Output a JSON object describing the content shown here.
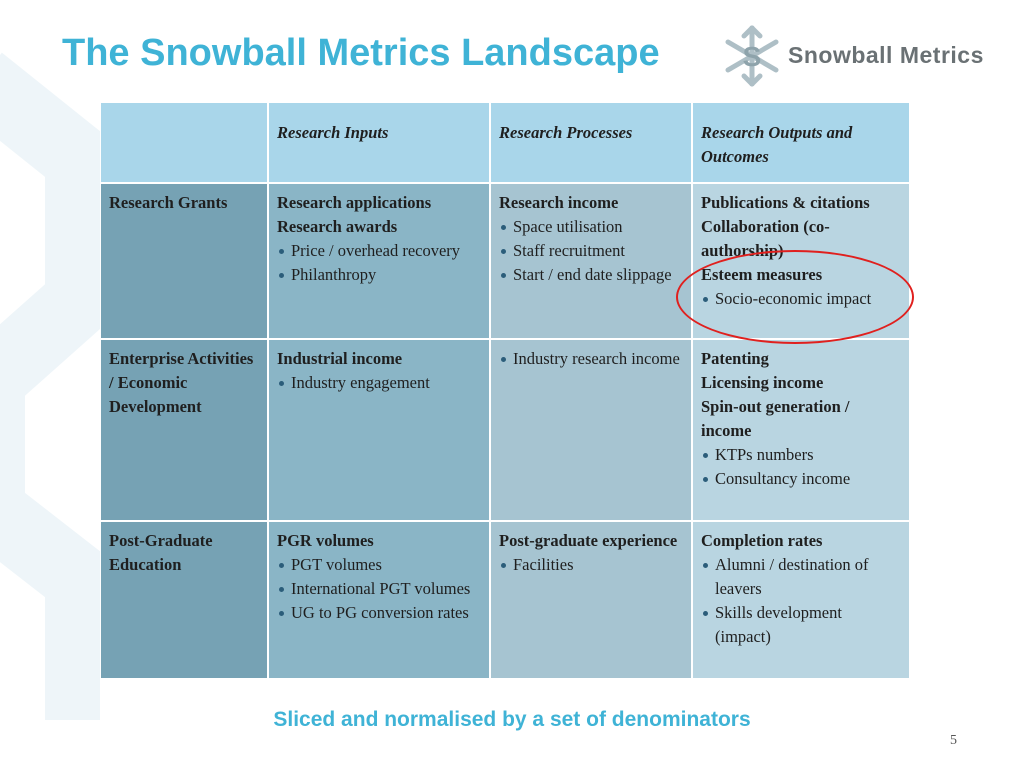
{
  "slide": {
    "title": "The Snowball Metrics Landscape",
    "footer": "Sliced and normalised by a set of denominators",
    "page_number": "5"
  },
  "logo": {
    "text": "Snowball Metrics",
    "icon": "snowflake-s-icon"
  },
  "colors": {
    "title": "#3fb3d6",
    "header_row": "#a9d6ea",
    "row_header": "#76a2b4",
    "highlight_circle": "#e0201e"
  },
  "table": {
    "columns": [
      "",
      "Research Inputs",
      "Research Processes",
      "Research Outputs and Outcomes"
    ],
    "rows": [
      {
        "header": "Research Grants",
        "inputs": {
          "bold": [
            "Research applications",
            "Research awards"
          ],
          "bullets": [
            "Price / overhead recovery",
            "Philanthropy"
          ]
        },
        "processes": {
          "bold": [
            "Research income"
          ],
          "bullets": [
            "Space utilisation",
            "Staff recruitment",
            "Start / end date slippage"
          ]
        },
        "outputs": {
          "bold": [
            "Publications & citations",
            "Collaboration (co-authorship)",
            "Esteem measures"
          ],
          "bullets": [
            "Socio-economic impact"
          ]
        }
      },
      {
        "header": "Enterprise Activities / Economic Development",
        "inputs": {
          "bold": [
            "Industrial income"
          ],
          "bullets": [
            "Industry engagement"
          ]
        },
        "processes": {
          "bold": [],
          "bullets": [
            "Industry research income"
          ]
        },
        "outputs": {
          "bold": [
            "Patenting",
            "Licensing income",
            "Spin-out generation / income"
          ],
          "bullets": [
            "KTPs numbers",
            "Consultancy income"
          ]
        }
      },
      {
        "header": "Post-Graduate Education",
        "inputs": {
          "bold": [
            "PGR volumes"
          ],
          "bullets": [
            "PGT volumes",
            "International PGT volumes",
            "UG to PG conversion rates"
          ]
        },
        "processes": {
          "bold": [
            "Post-graduate experience"
          ],
          "bullets": [
            "Facilities"
          ]
        },
        "outputs": {
          "bold": [
            "Completion rates"
          ],
          "bullets": [
            "Alumni / destination of leavers",
            "Skills development (impact)"
          ]
        }
      }
    ]
  }
}
